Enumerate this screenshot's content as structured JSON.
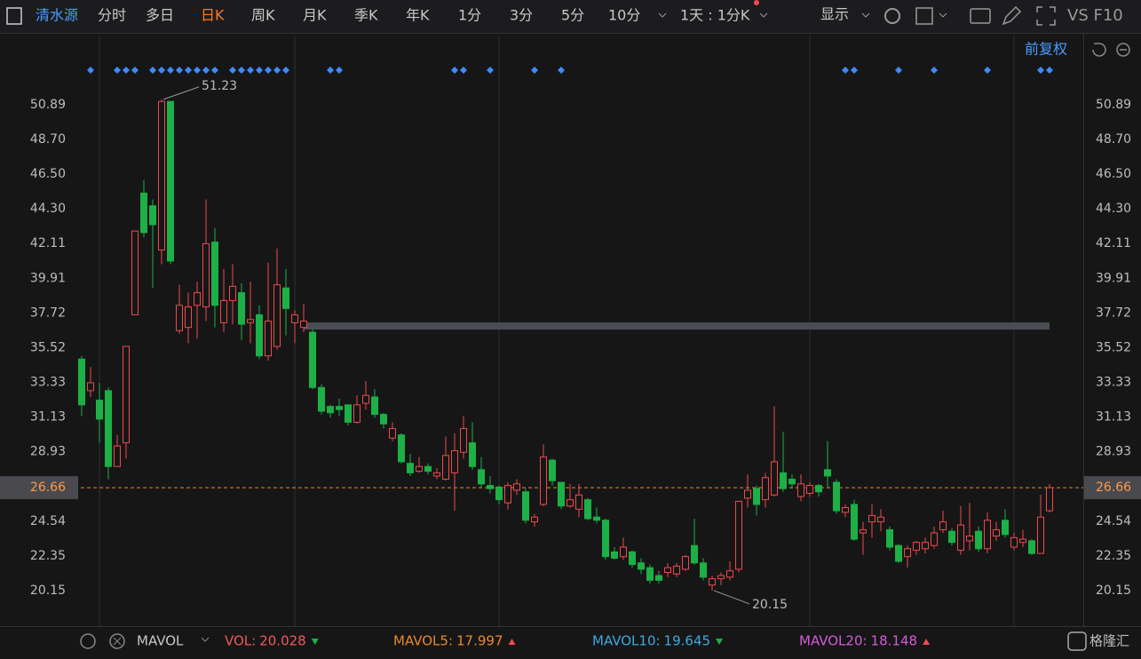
{
  "toolbar": {
    "stock": "清水源",
    "tabs": [
      "分时",
      "多日",
      "日K",
      "周K",
      "月K",
      "季K",
      "年K",
      "1分",
      "3分",
      "5分",
      "10分"
    ],
    "active_tab": 2,
    "period": "1天 : 1分K",
    "display": "显示",
    "extra": "VS F10"
  },
  "chart_data": {
    "type": "candlestick",
    "adjust": "前复权",
    "open": [
      34.8,
      32.8,
      32.2,
      32.8,
      28.0,
      29.5,
      37.6,
      45.3,
      44.5,
      41.7,
      51.1,
      36.6,
      36.8,
      38.2,
      38.1,
      42.2,
      37.1,
      38.5,
      39.0,
      37.1,
      37.6,
      35.0,
      35.6,
      39.3,
      37.1,
      36.8,
      36.5,
      33.0,
      31.8,
      31.8,
      31.9,
      30.8,
      32.0,
      32.4,
      31.3,
      29.8,
      30.0,
      28.2,
      27.7,
      28.0,
      27.4,
      27.2,
      27.6,
      28.9,
      29.5,
      27.8,
      26.8,
      26.7,
      25.7,
      26.5,
      26.4,
      24.5,
      25.6,
      28.4,
      27.0,
      25.5,
      25.3,
      25.9,
      24.8,
      24.6,
      22.6,
      22.3,
      22.6,
      21.9,
      21.6,
      21.1,
      21.3,
      21.2,
      21.5,
      23.0,
      21.9,
      20.5,
      20.9,
      21.0,
      21.5,
      26.0,
      26.6,
      25.9,
      26.2,
      27.6,
      27.2,
      26.1,
      26.3,
      26.8,
      27.8,
      27.0,
      25.1,
      25.6,
      23.8,
      24.5,
      24.5,
      24.0,
      23.0,
      22.3,
      22.7,
      22.8,
      23.0,
      24.0,
      23.9,
      22.7,
      23.3,
      23.9,
      22.8,
      23.6,
      24.6,
      22.9,
      23.2,
      23.3,
      22.5,
      25.2
    ],
    "high": [
      35.0,
      34.3,
      33.3,
      33.0,
      30.0,
      35.6,
      42.9,
      46.1,
      44.9,
      51.23,
      51.1,
      39.5,
      39.0,
      39.7,
      44.9,
      43.1,
      40.5,
      40.8,
      39.6,
      39.7,
      38.2,
      40.9,
      41.8,
      40.5,
      37.9,
      38.3,
      36.7,
      33.2,
      31.9,
      32.3,
      31.9,
      32.5,
      33.4,
      32.9,
      31.4,
      30.8,
      30.1,
      28.8,
      28.6,
      28.2,
      27.9,
      29.9,
      30.1,
      31.2,
      30.8,
      28.6,
      27.4,
      26.8,
      27.0,
      27.2,
      26.6,
      25.0,
      29.4,
      28.5,
      27.0,
      26.9,
      26.9,
      26.0,
      25.4,
      24.7,
      22.9,
      23.5,
      22.7,
      22.2,
      21.8,
      21.4,
      21.9,
      21.9,
      22.4,
      24.7,
      22.2,
      21.1,
      21.3,
      22.0,
      25.8,
      27.5,
      26.8,
      27.6,
      31.8,
      30.2,
      27.5,
      27.5,
      27.0,
      26.9,
      29.6,
      27.2,
      25.6,
      25.9,
      24.5,
      25.6,
      25.3,
      24.2,
      23.1,
      23.0,
      23.3,
      23.5,
      24.2,
      25.2,
      24.1,
      25.5,
      25.7,
      24.2,
      25.1,
      24.5,
      25.3,
      23.8,
      24.0,
      23.4,
      26.2,
      26.9
    ],
    "low": [
      31.2,
      32.4,
      29.5,
      27.2,
      28.0,
      28.5,
      37.6,
      42.5,
      39.3,
      40.8,
      40.8,
      36.4,
      35.8,
      36.1,
      37.2,
      36.8,
      36.5,
      37.0,
      36.0,
      35.8,
      34.8,
      34.7,
      35.4,
      36.3,
      35.8,
      36.5,
      32.9,
      31.3,
      31.1,
      31.2,
      30.6,
      30.7,
      31.6,
      31.1,
      30.4,
      29.6,
      28.2,
      27.4,
      27.6,
      27.5,
      27.2,
      27.1,
      25.2,
      28.5,
      27.8,
      26.7,
      26.3,
      25.6,
      25.3,
      26.2,
      24.4,
      24.2,
      25.5,
      26.8,
      25.3,
      25.4,
      24.8,
      24.6,
      24.4,
      22.1,
      22.1,
      22.1,
      21.6,
      21.2,
      20.6,
      20.6,
      21.0,
      21.0,
      21.4,
      21.8,
      20.8,
      20.15,
      20.5,
      20.8,
      21.3,
      25.4,
      24.9,
      25.4,
      26.1,
      26.4,
      26.6,
      25.8,
      26.1,
      26.1,
      26.7,
      25.0,
      24.8,
      23.3,
      22.4,
      23.5,
      23.9,
      22.7,
      21.9,
      21.6,
      22.4,
      22.5,
      22.8,
      23.8,
      23.0,
      22.4,
      22.7,
      22.6,
      22.5,
      23.3,
      23.5,
      22.7,
      22.9,
      22.4,
      22.5,
      25.1
    ],
    "close": [
      31.9,
      33.3,
      31.0,
      28.0,
      29.3,
      35.6,
      42.9,
      42.8,
      43.3,
      51.1,
      41.0,
      38.2,
      38.1,
      39.0,
      42.1,
      38.2,
      38.5,
      39.4,
      37.0,
      37.3,
      35.0,
      37.2,
      39.5,
      38.0,
      37.6,
      37.2,
      33.0,
      31.5,
      31.4,
      31.6,
      30.8,
      31.9,
      32.5,
      31.3,
      30.7,
      30.4,
      28.3,
      27.6,
      28.0,
      27.7,
      27.6,
      28.7,
      29.0,
      30.4,
      28.0,
      26.9,
      26.6,
      25.9,
      26.8,
      26.9,
      24.6,
      24.8,
      28.6,
      27.1,
      25.5,
      25.9,
      26.2,
      24.7,
      24.6,
      22.3,
      22.2,
      22.9,
      21.8,
      21.5,
      20.8,
      20.8,
      21.6,
      21.7,
      22.3,
      21.9,
      21.0,
      20.9,
      21.1,
      21.4,
      25.8,
      26.5,
      25.6,
      27.3,
      28.3,
      26.6,
      26.9,
      26.9,
      26.8,
      26.4,
      27.4,
      25.2,
      25.4,
      23.4,
      24.0,
      24.9,
      24.8,
      22.9,
      22.0,
      22.8,
      23.2,
      23.2,
      23.8,
      24.5,
      23.2,
      24.3,
      23.6,
      22.8,
      24.6,
      24.0,
      23.7,
      23.5,
      23.4,
      22.5,
      24.8,
      26.66
    ],
    "up_color": "#ef4a4a",
    "down_color": "#1db046",
    "ylim": [
      17.9,
      55.27
    ],
    "yticks": [
      {
        "value": 50.89,
        "label": "50.89"
      },
      {
        "value": 48.7,
        "label": "48.70"
      },
      {
        "value": 46.5,
        "label": "46.50"
      },
      {
        "value": 44.3,
        "label": "44.30"
      },
      42.11,
      39.91,
      37.72,
      35.52,
      33.33,
      31.13,
      28.93,
      24.54,
      22.35,
      20.15
    ],
    "last_price": 26.66,
    "high_label": 51.23,
    "low_label": 20.15,
    "level": 36.89,
    "level_from": 25,
    "markers": [
      1,
      4,
      5,
      6,
      8,
      9,
      10,
      11,
      12,
      13,
      14,
      15,
      17,
      18,
      19,
      20,
      21,
      22,
      23,
      28,
      29,
      42,
      43,
      46,
      51,
      54,
      86,
      87,
      92,
      96,
      102,
      108,
      109
    ],
    "separators": [
      2,
      24,
      47,
      82,
      105
    ]
  },
  "indicator_bar": {
    "selector": "MAVOL",
    "items": [
      {
        "label": "VOL:",
        "value": 20.028,
        "trend": "down",
        "color": "#ef5a5a"
      },
      {
        "label": "MAVOL5:",
        "value": 17.997,
        "trend": "up",
        "color": "#e8892f"
      },
      {
        "label": "MAVOL10:",
        "value": 19.645,
        "trend": "down",
        "color": "#3fa9e0"
      },
      {
        "label": "MAVOL20:",
        "value": 18.148,
        "trend": "up",
        "color": "#d65ad8"
      }
    ],
    "brand": "格隆汇"
  }
}
